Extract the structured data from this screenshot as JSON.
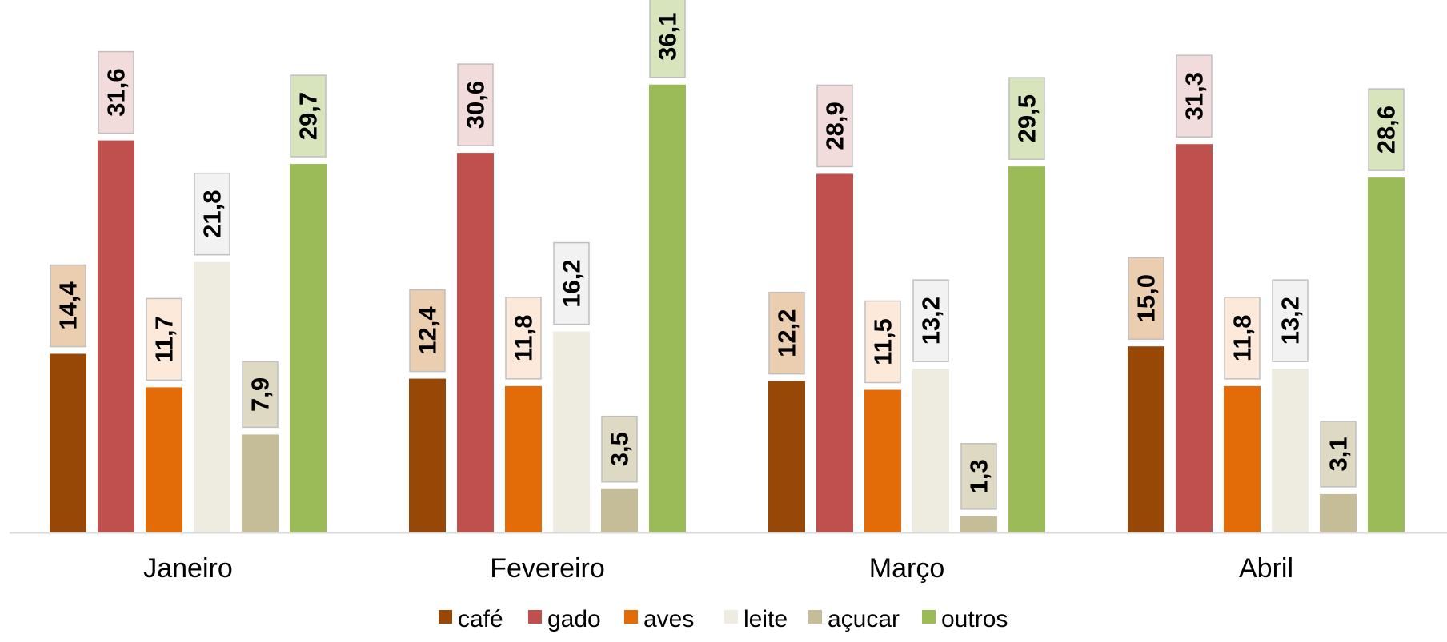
{
  "chart_data": {
    "type": "bar",
    "categories": [
      "Janeiro",
      "Fevereiro",
      "Março",
      "Abril"
    ],
    "series": [
      {
        "name": "café",
        "color": "#974706",
        "label_bg": "#EBCDB0",
        "values": [
          14.4,
          12.4,
          12.2,
          15.0
        ]
      },
      {
        "name": "gado",
        "color": "#C0504D",
        "label_bg": "#F2DCDB",
        "values": [
          31.6,
          30.6,
          28.9,
          31.3
        ]
      },
      {
        "name": "aves",
        "color": "#E36C09",
        "label_bg": "#FDE9D9",
        "values": [
          11.7,
          11.8,
          11.5,
          11.8
        ]
      },
      {
        "name": "leite",
        "color": "#EEECE1",
        "label_bg": "#F2F2F2",
        "values": [
          21.8,
          16.2,
          13.2,
          13.2
        ]
      },
      {
        "name": "açucar",
        "color": "#C4BD97",
        "label_bg": "#DDD9C3",
        "values": [
          7.9,
          3.5,
          1.3,
          3.1
        ]
      },
      {
        "name": "outros",
        "color": "#9BBB59",
        "label_bg": "#D7E4BC",
        "values": [
          29.7,
          36.1,
          29.5,
          28.6
        ]
      }
    ],
    "value_labels": [
      [
        "14,4",
        "12,4",
        "12,2",
        "15,0"
      ],
      [
        "31,6",
        "30,6",
        "28,9",
        "31,3"
      ],
      [
        "11,7",
        "11,8",
        "11,5",
        "11,8"
      ],
      [
        "21,8",
        "16,2",
        "13,2",
        "13,2"
      ],
      [
        "7,9",
        "3,5",
        "1,3",
        "3,1"
      ],
      [
        "29,7",
        "36,1",
        "29,5",
        "28,6"
      ]
    ],
    "title": "",
    "xlabel": "",
    "ylabel": "",
    "ylim": [
      0,
      40
    ],
    "grid": false,
    "legend_position": "bottom",
    "axis_color": "#D9D9D9"
  }
}
